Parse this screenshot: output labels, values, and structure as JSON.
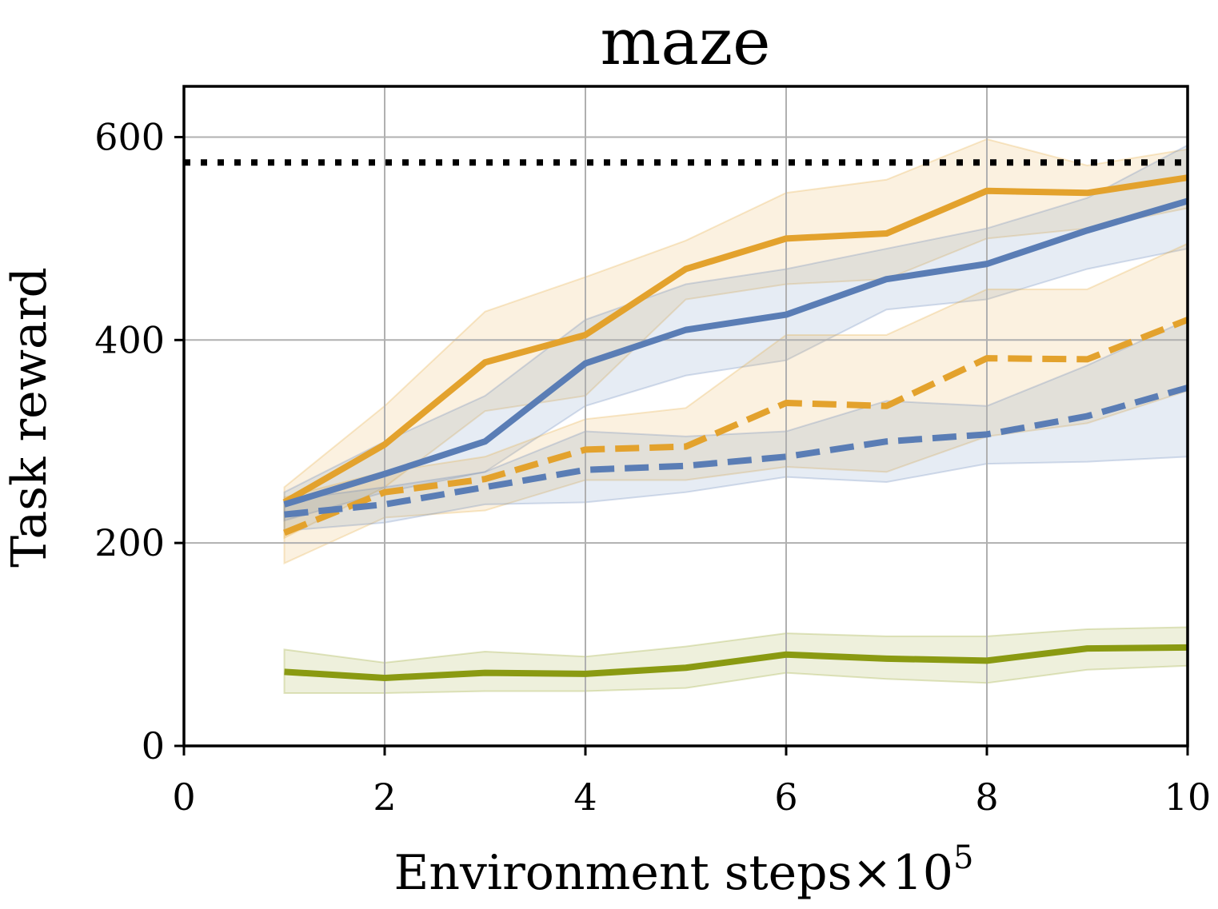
{
  "chart_data": {
    "type": "line",
    "title": "maze",
    "xlabel": "Environment steps",
    "xlabel_multiplier": "×10",
    "xlabel_exponent": "5",
    "ylabel": "Task reward",
    "xlim": [
      0,
      10
    ],
    "ylim": [
      0,
      650
    ],
    "xticks": [
      "0",
      "2",
      "4",
      "6",
      "8",
      "10"
    ],
    "yticks": [
      "0",
      "200",
      "400",
      "600"
    ],
    "xtick_values": [
      0,
      2,
      4,
      6,
      8,
      10
    ],
    "ytick_values": [
      0,
      200,
      400,
      600
    ],
    "grid": true,
    "reference_line": {
      "y": 575,
      "style": "dotted",
      "color": "#000000"
    },
    "x": [
      1,
      2,
      3,
      4,
      5,
      6,
      7,
      8,
      9,
      10
    ],
    "series": [
      {
        "name": "orange-solid",
        "color": "#e3a22d",
        "style": "solid",
        "values": [
          240,
          297,
          378,
          405,
          470,
          500,
          505,
          547,
          545,
          560
        ],
        "lower": [
          205,
          255,
          330,
          345,
          440,
          455,
          460,
          500,
          510,
          530
        ],
        "upper": [
          255,
          335,
          428,
          462,
          498,
          545,
          558,
          598,
          572,
          588
        ]
      },
      {
        "name": "blue-solid",
        "color": "#5a7db5",
        "style": "solid",
        "values": [
          238,
          268,
          300,
          377,
          410,
          425,
          460,
          475,
          508,
          537
        ],
        "lower": [
          222,
          250,
          270,
          335,
          365,
          380,
          430,
          440,
          470,
          490
        ],
        "upper": [
          250,
          300,
          345,
          420,
          455,
          470,
          490,
          510,
          540,
          592
        ]
      },
      {
        "name": "orange-dashed",
        "color": "#e3a22d",
        "style": "dashed",
        "values": [
          210,
          250,
          263,
          292,
          295,
          338,
          335,
          382,
          381,
          420
        ],
        "lower": [
          180,
          225,
          232,
          262,
          262,
          275,
          270,
          305,
          318,
          350
        ],
        "upper": [
          245,
          270,
          285,
          322,
          333,
          405,
          405,
          450,
          450,
          495
        ]
      },
      {
        "name": "blue-dashed",
        "color": "#5a7db5",
        "style": "dashed",
        "values": [
          228,
          238,
          255,
          272,
          276,
          285,
          300,
          307,
          325,
          353
        ],
        "lower": [
          212,
          220,
          238,
          240,
          250,
          265,
          260,
          278,
          280,
          285
        ],
        "upper": [
          242,
          255,
          270,
          310,
          305,
          310,
          340,
          335,
          375,
          420
        ]
      },
      {
        "name": "green-solid",
        "color": "#8a9a12",
        "style": "solid",
        "values": [
          73,
          67,
          72,
          71,
          77,
          90,
          86,
          84,
          96,
          97
        ],
        "lower": [
          52,
          52,
          54,
          54,
          57,
          72,
          66,
          62,
          75,
          79
        ],
        "upper": [
          95,
          82,
          93,
          88,
          98,
          111,
          108,
          108,
          115,
          117
        ]
      }
    ]
  }
}
